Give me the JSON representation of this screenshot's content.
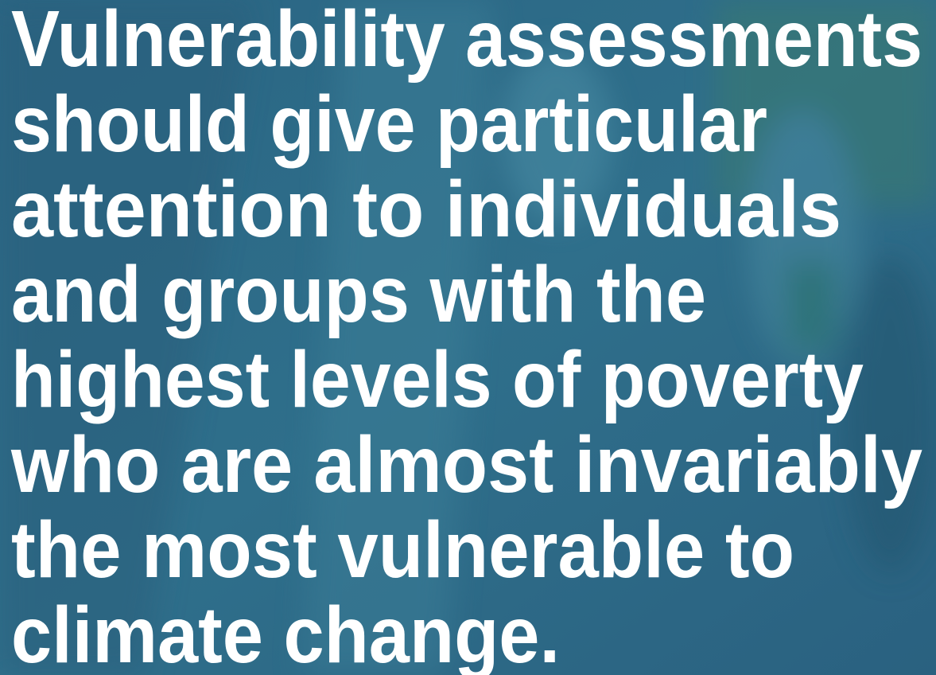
{
  "quote": {
    "lines": [
      "Vulnerability assessments",
      "should give particular",
      "attention to individuals",
      "and groups with the",
      "highest levels of poverty",
      "who are almost invariably",
      "the most vulnerable to",
      "climate change."
    ]
  }
}
